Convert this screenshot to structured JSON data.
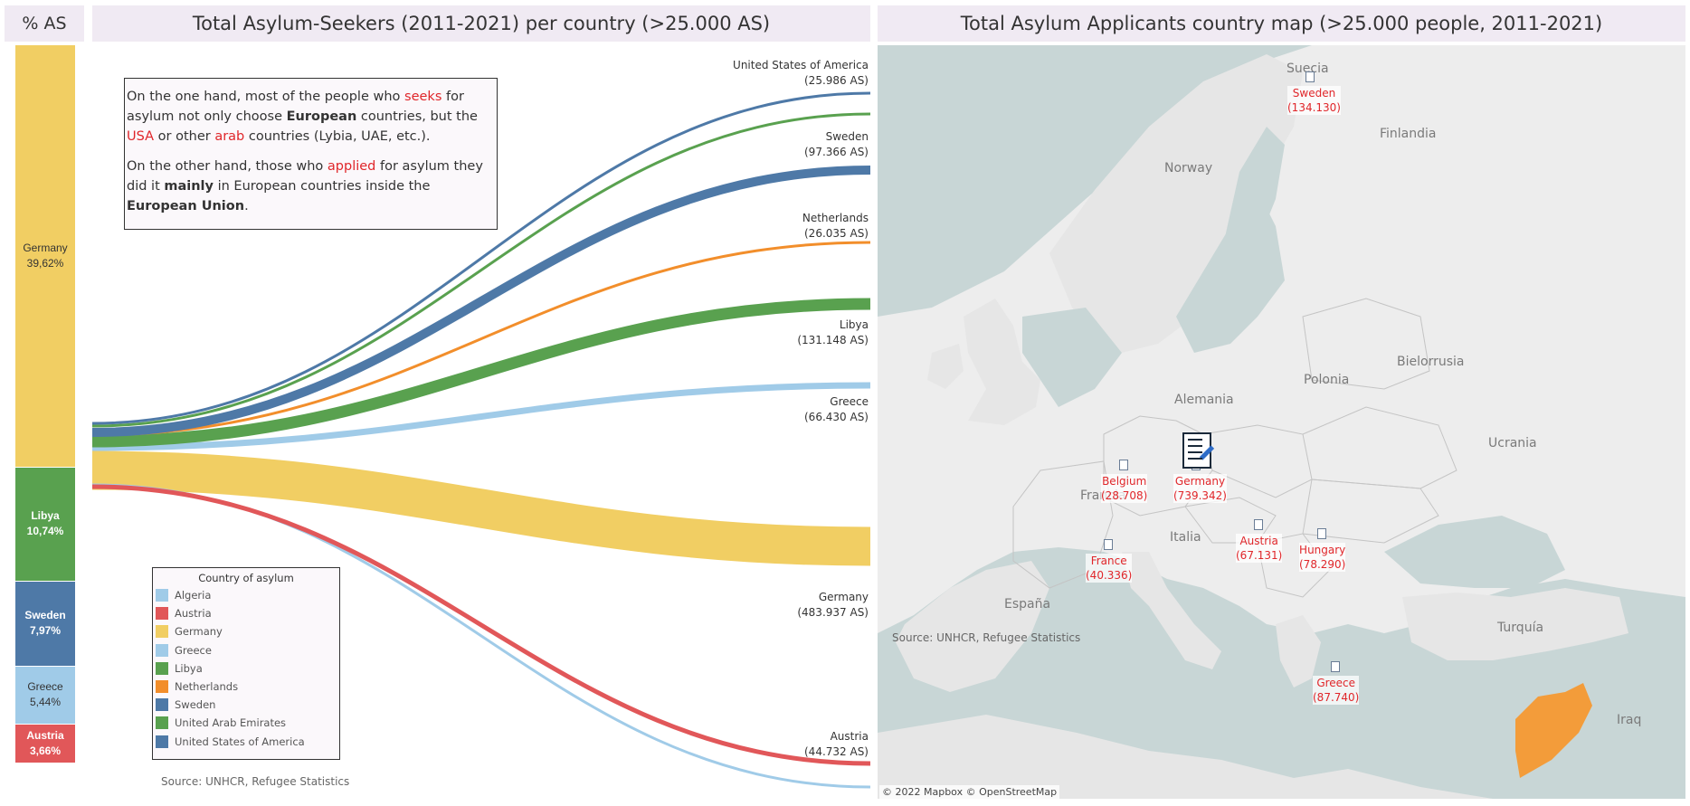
{
  "titles": {
    "pct": "% AS",
    "sankey": "Total Asylum-Seekers (2011-2021) per country (>25.000 AS)",
    "map": "Total Asylum Applicants country map (>25.000 people, 2011-2021)"
  },
  "annotation": {
    "p1": [
      "On the one hand, most of the people who ",
      "seeks",
      " for asylum not only choose ",
      "European",
      " countries, but the ",
      "USA",
      " or other ",
      "arab",
      " countries (Lybia, UAE, etc.)."
    ],
    "p2": [
      "On the other hand, those who ",
      "applied",
      " for asylum they did it ",
      "mainly",
      " in European countries inside the ",
      "European Union",
      "."
    ]
  },
  "legend": {
    "title": "Country of asylum",
    "items": [
      {
        "label": "Algeria",
        "color": "#a0cbe8"
      },
      {
        "label": "Austria",
        "color": "#e15759"
      },
      {
        "label": "Germany",
        "color": "#f1ce63"
      },
      {
        "label": "Greece",
        "color": "#a0cbe8"
      },
      {
        "label": "Libya",
        "color": "#59a14f"
      },
      {
        "label": "Netherlands",
        "color": "#f28e2b"
      },
      {
        "label": "Sweden",
        "color": "#4e79a7"
      },
      {
        "label": "United Arab Emirates",
        "color": "#59a14f"
      },
      {
        "label": "United States of America",
        "color": "#4e79a7"
      }
    ]
  },
  "source_left": "Source: UNHCR, Refugee Statistics",
  "source_map": "Source: UNHCR, Refugee Statistics",
  "map_credit": "© 2022 Mapbox  © OpenStreetMap",
  "geo_names": [
    "Suecia",
    "Finlandia",
    "Norway",
    "Polonia",
    "Bielorrusia",
    "Ucrania",
    "Alemania",
    "Francia",
    "Italia",
    "España",
    "Turquía",
    "Iraq"
  ],
  "map_labels": [
    {
      "country": "Sweden",
      "value": "(134.130)"
    },
    {
      "country": "Belgium",
      "value": "(28.708)"
    },
    {
      "country": "Germany",
      "value": "(739.342)"
    },
    {
      "country": "Austria",
      "value": "(67.131)"
    },
    {
      "country": "Hungary",
      "value": "(78.290)"
    },
    {
      "country": "France",
      "value": "(40.336)"
    },
    {
      "country": "Greece",
      "value": "(87.740)"
    }
  ],
  "chart_data": [
    {
      "type": "bar",
      "title": "% AS",
      "stacked": true,
      "categories": [
        "Germany",
        "Libya",
        "Sweden",
        "Greece",
        "Austria"
      ],
      "values_pct": [
        39.62,
        10.74,
        7.97,
        5.44,
        3.66
      ],
      "labels": [
        "39,62%",
        "10,74%",
        "7,97%",
        "5,44%",
        "3,66%"
      ],
      "colors": [
        "#f1ce63",
        "#59a14f",
        "#4e79a7",
        "#a0cbe8",
        "#e15759"
      ]
    },
    {
      "type": "sankey",
      "title": "Total Asylum-Seekers (2011-2021) per country (>25.000 AS)",
      "flows": [
        {
          "name": "United States of America",
          "value_label": "(25.986 AS)",
          "value": 25986,
          "color": "#4e79a7"
        },
        {
          "name": "United Arab Emirates",
          "value_label": "",
          "value": null,
          "color": "#59a14f"
        },
        {
          "name": "Sweden",
          "value_label": "(97.366 AS)",
          "value": 97366,
          "color": "#4e79a7"
        },
        {
          "name": "Netherlands",
          "value_label": "(26.035 AS)",
          "value": 26035,
          "color": "#f28e2b"
        },
        {
          "name": "Libya",
          "value_label": "(131.148 AS)",
          "value": 131148,
          "color": "#59a14f"
        },
        {
          "name": "Greece",
          "value_label": "(66.430 AS)",
          "value": 66430,
          "color": "#a0cbe8"
        },
        {
          "name": "Germany",
          "value_label": "(483.937 AS)",
          "value": 483937,
          "color": "#f1ce63"
        },
        {
          "name": "Austria",
          "value_label": "(44.732 AS)",
          "value": 44732,
          "color": "#e15759"
        },
        {
          "name": "Algeria",
          "value_label": "",
          "value": null,
          "color": "#a0cbe8"
        }
      ]
    }
  ]
}
